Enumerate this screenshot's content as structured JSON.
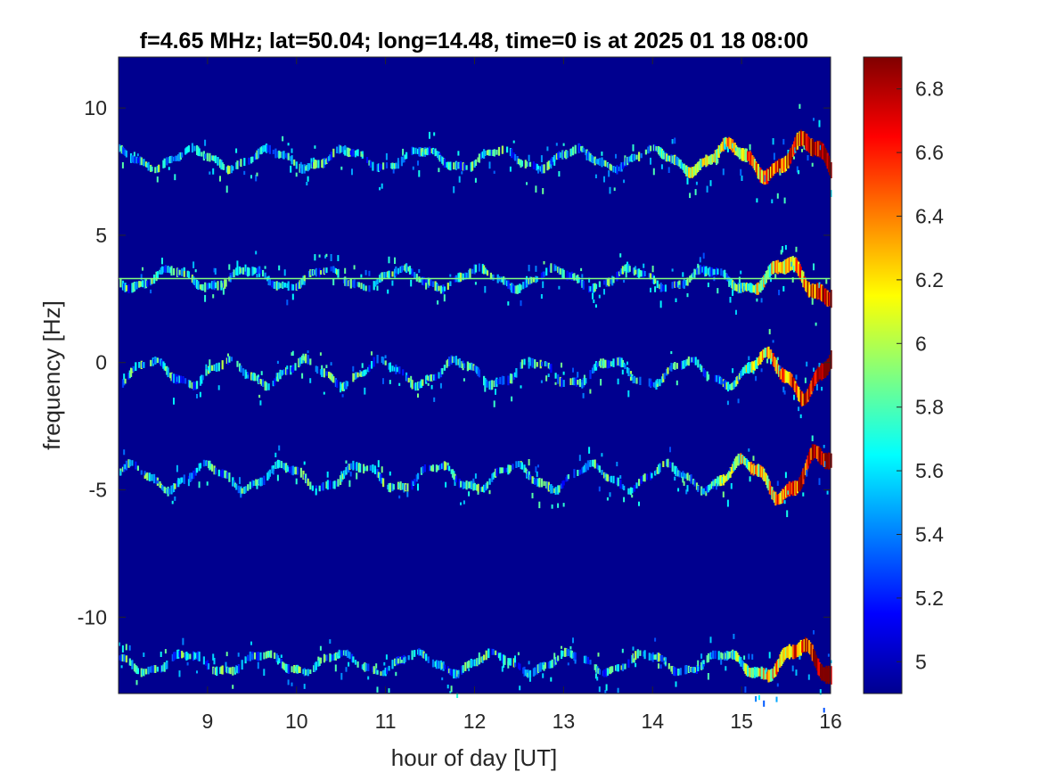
{
  "chart_data": {
    "type": "heatmap",
    "title": "f=4.65 MHz;  lat=50.04; long=14.48, time=0 is at 2025 01 18 08:00",
    "xlabel": "hour of day [UT]",
    "ylabel": "frequency [Hz]",
    "xlim": [
      8.0,
      16.0
    ],
    "ylim": [
      -13.0,
      12.0
    ],
    "x_ticks": [
      9,
      10,
      11,
      12,
      13,
      14,
      15,
      16
    ],
    "x_tick_labels": [
      "9",
      "10",
      "11",
      "12",
      "13",
      "14",
      "15",
      "16"
    ],
    "y_ticks": [
      10,
      5,
      0,
      -5,
      -10
    ],
    "y_tick_labels": [
      "10",
      "5",
      "0",
      "-5",
      "-10"
    ],
    "colorbar": {
      "colormap": "jet",
      "range": [
        4.9,
        6.9
      ],
      "ticks": [
        6.8,
        6.6,
        6.4,
        6.2,
        6,
        5.8,
        5.6,
        5.4,
        5.2,
        5
      ],
      "tick_labels": [
        "6.8",
        "6.6",
        "6.4",
        "6.2",
        "6",
        "5.8",
        "5.6",
        "5.4",
        "5.2",
        "5"
      ]
    },
    "background_level": 4.9,
    "bands": [
      {
        "center_hz": 8.0,
        "amplitude_hz": 0.35,
        "activity_start_hour": 14.0,
        "peak_level": 6.7
      },
      {
        "center_hz": 3.3,
        "amplitude_hz": 0.35,
        "activity_start_hour": 14.8,
        "peak_level": 6.6
      },
      {
        "center_hz": -0.4,
        "amplitude_hz": 0.45,
        "activity_start_hour": 14.8,
        "peak_level": 6.9
      },
      {
        "center_hz": -4.5,
        "amplitude_hz": 0.45,
        "activity_start_hour": 14.6,
        "peak_level": 6.8
      },
      {
        "center_hz": -11.8,
        "amplitude_hz": 0.35,
        "activity_start_hour": 14.8,
        "peak_level": 6.8
      }
    ],
    "constant_line_hz": 3.3,
    "grid": false
  }
}
